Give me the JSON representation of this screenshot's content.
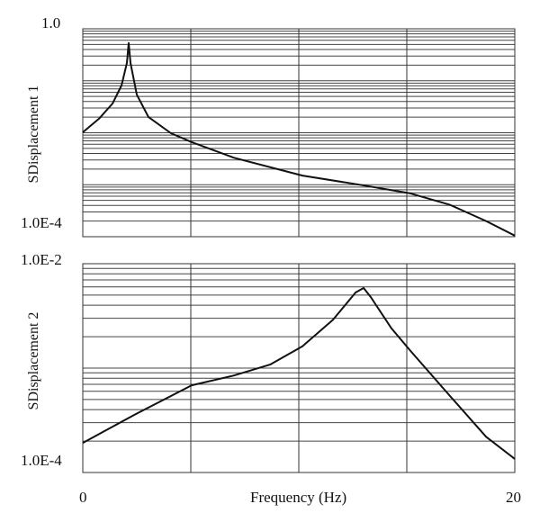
{
  "chart_data": [
    {
      "type": "line",
      "ylabel": "SDisplacement 1",
      "yscale": "log",
      "ylim": [
        0.0001,
        1.0
      ],
      "xlim": [
        0,
        20
      ],
      "yticklabels": [
        "1.0",
        "1.0E-4"
      ],
      "grid": true,
      "x": [
        0,
        0.75,
        1.38,
        1.79,
        2.04,
        2.125,
        2.21,
        2.5,
        3.04,
        4.08,
        5.04,
        7.0,
        10.17,
        12.83,
        15.17,
        17.0,
        18.67,
        20.0
      ],
      "y": [
        0.0102,
        0.0186,
        0.0365,
        0.081,
        0.22,
        0.53,
        0.22,
        0.054,
        0.02,
        0.0098,
        0.0066,
        0.0033,
        0.0015,
        0.001,
        0.00068,
        0.00041,
        0.0002,
        0.000105
      ]
    },
    {
      "type": "line",
      "ylabel": "SDisplacement 2",
      "xlabel": "Frequency (Hz)",
      "yscale": "log",
      "ylim": [
        0.0001,
        0.01
      ],
      "xlim": [
        0,
        20
      ],
      "xticklabels": [
        "0",
        "20"
      ],
      "yticklabels": [
        "1.0E-2",
        "1.0E-4"
      ],
      "grid": true,
      "x": [
        0,
        2.42,
        5.04,
        7.0,
        8.67,
        10.17,
        11.58,
        12.63,
        13.0,
        13.33,
        14.29,
        15.17,
        17.0,
        18.67,
        20.0
      ],
      "y": [
        0.000192,
        0.00036,
        0.000685,
        0.00085,
        0.00108,
        0.00162,
        0.0029,
        0.0053,
        0.00585,
        0.0048,
        0.0024,
        0.00146,
        0.00054,
        0.00022,
        0.000135
      ]
    }
  ]
}
